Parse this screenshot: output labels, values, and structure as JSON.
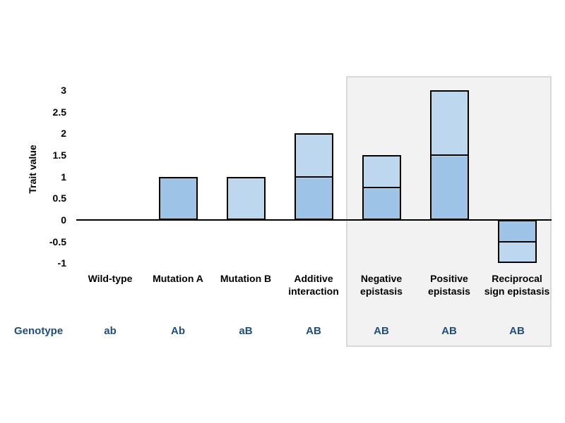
{
  "colors": {
    "bar_dark_blue": "#9DC3E6",
    "bar_light_blue": "#BDD7EE",
    "bar_border": "#000000",
    "axis": "#000000",
    "label_text": "#000000",
    "genotype_text": "#1F4E79",
    "panel_fill": "#F2F2F2",
    "panel_border": "#D9D9D9",
    "background": "#FFFFFF"
  },
  "chart_data": {
    "type": "bar",
    "subtype": "stacked-bar",
    "title": "",
    "xlabel": "",
    "ylabel": "Trait value",
    "ylim": [
      -1,
      3
    ],
    "yticks": [
      3,
      2.5,
      2,
      1.5,
      1,
      0.5,
      0,
      -0.5,
      -1
    ],
    "grid": false,
    "legend_position": "none",
    "genotype_row_label": "Genotype",
    "categories": [
      "Wild-type",
      "Mutation A",
      "Mutation B",
      "Additive interaction",
      "Negative epistasis",
      "Positive epistasis",
      "Reciprocal sign epistasis"
    ],
    "genotypes": [
      "ab",
      "Ab",
      "aB",
      "AB",
      "AB",
      "AB",
      "AB"
    ],
    "totals": [
      0,
      1,
      1,
      2,
      1.5,
      3,
      -1
    ],
    "highlighted_categories": [
      "Negative epistasis",
      "Positive epistasis",
      "Reciprocal sign epistasis"
    ],
    "columns": [
      {
        "label": "Wild-type",
        "lines": [
          "Wild-type"
        ],
        "genotype": "ab",
        "highlighted": false,
        "total": 0,
        "segments": []
      },
      {
        "label": "Mutation A",
        "lines": [
          "Mutation A"
        ],
        "genotype": "Ab",
        "highlighted": false,
        "total": 1,
        "segments": [
          {
            "value": 1,
            "color": "#9DC3E6"
          }
        ]
      },
      {
        "label": "Mutation B",
        "lines": [
          "Mutation B"
        ],
        "genotype": "aB",
        "highlighted": false,
        "total": 1,
        "segments": [
          {
            "value": 1,
            "color": "#BDD7EE"
          }
        ]
      },
      {
        "label": "Additive interaction",
        "lines": [
          "Additive",
          "interaction"
        ],
        "genotype": "AB",
        "highlighted": false,
        "total": 2,
        "segments": [
          {
            "value": 1,
            "color": "#9DC3E6"
          },
          {
            "value": 1,
            "color": "#BDD7EE"
          }
        ]
      },
      {
        "label": "Negative epistasis",
        "lines": [
          "Negative",
          "epistasis"
        ],
        "genotype": "AB",
        "highlighted": true,
        "total": 1.5,
        "segments": [
          {
            "value": 0.75,
            "color": "#9DC3E6"
          },
          {
            "value": 0.75,
            "color": "#BDD7EE"
          }
        ]
      },
      {
        "label": "Positive epistasis",
        "lines": [
          "Positive",
          "epistasis"
        ],
        "genotype": "AB",
        "highlighted": true,
        "total": 3,
        "segments": [
          {
            "value": 1.5,
            "color": "#9DC3E6"
          },
          {
            "value": 1.5,
            "color": "#BDD7EE"
          }
        ]
      },
      {
        "label": "Reciprocal sign epistasis",
        "lines": [
          "Reciprocal",
          "sign epistasis"
        ],
        "genotype": "AB",
        "highlighted": true,
        "total": -1,
        "segments": [
          {
            "value": -0.5,
            "color": "#9DC3E6"
          },
          {
            "value": -0.5,
            "color": "#BDD7EE"
          }
        ]
      }
    ]
  }
}
